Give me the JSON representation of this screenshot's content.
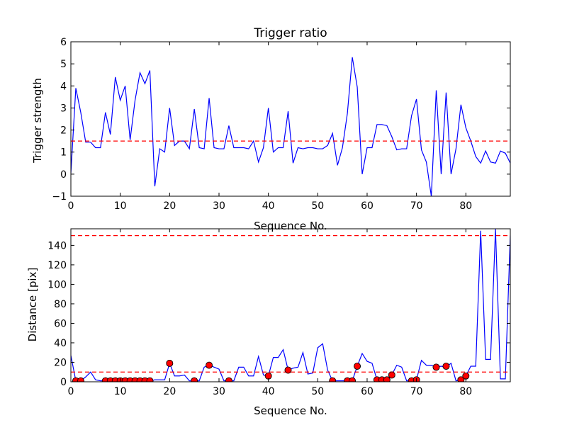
{
  "chart_data": [
    {
      "type": "line",
      "title": "Trigger ratio",
      "xlabel": "Sequence No.",
      "ylabel": "Trigger strength",
      "xlim": [
        0,
        89
      ],
      "ylim": [
        -1,
        6
      ],
      "xticks": [
        0,
        10,
        20,
        30,
        40,
        50,
        60,
        70,
        80
      ],
      "yticks": [
        -1,
        0,
        1,
        2,
        3,
        4,
        5,
        6
      ],
      "series": [
        {
          "color": "#0000ff",
          "x": [
            0,
            1,
            2,
            3,
            4,
            5,
            6,
            7,
            8,
            9,
            10,
            11,
            12,
            13,
            14,
            15,
            16,
            17,
            18,
            19,
            20,
            21,
            22,
            23,
            24,
            25,
            26,
            27,
            28,
            29,
            30,
            31,
            32,
            33,
            34,
            35,
            36,
            37,
            38,
            39,
            40,
            41,
            42,
            43,
            44,
            45,
            46,
            47,
            48,
            49,
            50,
            51,
            52,
            53,
            54,
            55,
            56,
            57,
            58,
            59,
            60,
            61,
            62,
            63,
            64,
            65,
            66,
            67,
            68,
            69,
            70,
            71,
            72,
            73,
            74,
            75,
            76,
            77,
            78,
            79,
            80,
            81,
            82,
            83,
            84,
            85,
            86,
            87,
            88,
            89
          ],
          "values": [
            0.05,
            3.9,
            2.8,
            1.45,
            1.45,
            1.2,
            1.2,
            2.8,
            1.8,
            4.4,
            3.35,
            4.0,
            1.55,
            3.35,
            4.6,
            4.1,
            4.7,
            -0.55,
            1.15,
            1.0,
            3.0,
            1.3,
            1.5,
            1.5,
            1.15,
            2.95,
            1.2,
            1.15,
            3.45,
            1.2,
            1.15,
            1.15,
            2.2,
            1.2,
            1.2,
            1.2,
            1.15,
            1.5,
            0.55,
            1.2,
            3.0,
            1.0,
            1.2,
            1.2,
            2.85,
            0.5,
            1.2,
            1.15,
            1.2,
            1.2,
            1.15,
            1.15,
            1.3,
            1.85,
            0.4,
            1.2,
            2.75,
            5.3,
            3.95,
            0.0,
            1.2,
            1.2,
            2.25,
            2.25,
            2.2,
            1.7,
            1.1,
            1.15,
            1.15,
            2.65,
            3.4,
            1.1,
            0.55,
            -1.0,
            3.8,
            0.0,
            3.7,
            0.0,
            1.15,
            3.15,
            2.1,
            1.5,
            0.8,
            0.5,
            1.05,
            0.55,
            0.5,
            1.05,
            0.95,
            0.5
          ]
        }
      ],
      "hlines": [
        {
          "y": 1.5,
          "color": "#ff0000",
          "style": "dashed"
        }
      ]
    },
    {
      "type": "line",
      "title": "",
      "xlabel": "Sequence No.",
      "ylabel": "Distance [pix]",
      "xlim": [
        0,
        89
      ],
      "ylim": [
        0,
        157
      ],
      "xticks": [
        0,
        10,
        20,
        30,
        40,
        50,
        60,
        70,
        80
      ],
      "yticks": [
        0,
        20,
        40,
        60,
        80,
        100,
        120,
        140
      ],
      "series": [
        {
          "color": "#0000ff",
          "x": [
            0,
            1,
            2,
            3,
            4,
            5,
            6,
            7,
            8,
            9,
            10,
            11,
            12,
            13,
            14,
            15,
            16,
            17,
            18,
            19,
            20,
            21,
            22,
            23,
            24,
            25,
            26,
            27,
            28,
            29,
            30,
            31,
            32,
            33,
            34,
            35,
            36,
            37,
            38,
            39,
            40,
            41,
            42,
            43,
            44,
            45,
            46,
            47,
            48,
            49,
            50,
            51,
            52,
            53,
            54,
            55,
            56,
            57,
            58,
            59,
            60,
            61,
            62,
            63,
            64,
            65,
            66,
            67,
            68,
            69,
            70,
            71,
            72,
            73,
            74,
            75,
            76,
            77,
            78,
            79,
            80,
            81,
            82,
            83,
            84,
            85,
            86,
            87,
            88,
            89
          ],
          "values": [
            27,
            1,
            1,
            5,
            10,
            2,
            1,
            1,
            1,
            1,
            1,
            1,
            1,
            1,
            1,
            1,
            1,
            2,
            2,
            2,
            19,
            6,
            6,
            7,
            1,
            1,
            1,
            15,
            17,
            15,
            13,
            1,
            1,
            1,
            15,
            15,
            6,
            6,
            26,
            7,
            6,
            25,
            25,
            33,
            12,
            14,
            15,
            30,
            8,
            9,
            35,
            39,
            12,
            1,
            1,
            1,
            1,
            1,
            16,
            29,
            21,
            19,
            2,
            2,
            2,
            7,
            17,
            15,
            1,
            1,
            2,
            22,
            17,
            17,
            15,
            16,
            15,
            19,
            1,
            2,
            6,
            16,
            16,
            155,
            23,
            23,
            157,
            3,
            3,
            150
          ]
        },
        {
          "type": "scatter",
          "color": "#ff0000",
          "x": [
            1,
            2,
            7,
            8,
            9,
            10,
            11,
            12,
            13,
            14,
            15,
            16,
            20,
            25,
            28,
            32,
            40,
            44,
            53,
            56,
            57,
            58,
            62,
            63,
            64,
            65,
            69,
            70,
            74,
            76,
            79,
            80
          ],
          "values": [
            1,
            1,
            1,
            1,
            1,
            1,
            1,
            1,
            1,
            1,
            1,
            1,
            19,
            1,
            17,
            1,
            6,
            12,
            1,
            1,
            1,
            16,
            2,
            2,
            2,
            7,
            1,
            2,
            15,
            16,
            2,
            6
          ]
        }
      ],
      "hlines": [
        {
          "y": 10,
          "color": "#ff0000",
          "style": "dashed"
        },
        {
          "y": 150,
          "color": "#ff0000",
          "style": "dashed"
        }
      ]
    }
  ]
}
